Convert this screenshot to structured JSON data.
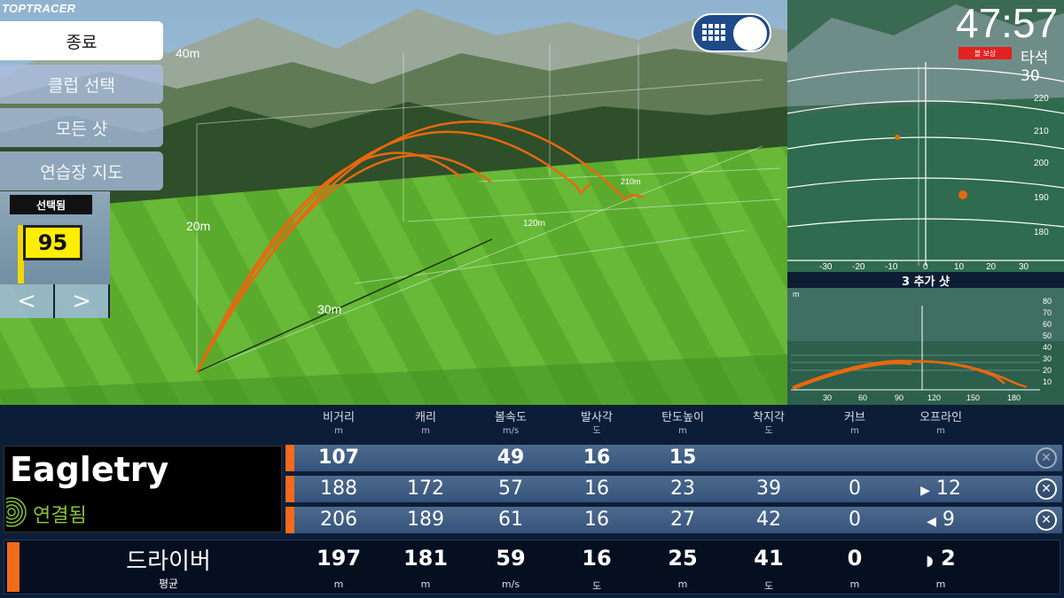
{
  "brand": "TOPTRACER",
  "menu": [
    {
      "label": "종료",
      "active": true
    },
    {
      "label": "클럽 선택",
      "active": false
    },
    {
      "label": "모든 샷",
      "active": false
    },
    {
      "label": "연습장 지도",
      "active": false
    }
  ],
  "target": {
    "label": "선택됨",
    "value": "95",
    "prev": "<",
    "next": ">"
  },
  "scene_labels": {
    "h40": "40m",
    "h20": "20m",
    "d30": "30m",
    "d120": "120m",
    "d210": "210m"
  },
  "timer": "47:57",
  "bonus_label": "볼 보상",
  "shots": {
    "label": "타석",
    "value": "30"
  },
  "top_view": {
    "y_ticks": [
      "220",
      "210",
      "200",
      "190",
      "180"
    ],
    "x_ticks": [
      "-30",
      "-20",
      "-10",
      "0",
      "10",
      "20",
      "30"
    ]
  },
  "add_shot": "3 추가 샷",
  "side_view": {
    "unit": "m",
    "y_ticks": [
      "80",
      "70",
      "60",
      "50",
      "40",
      "30",
      "20",
      "10"
    ],
    "x_ticks": [
      "30",
      "60",
      "90",
      "120",
      "150",
      "180"
    ]
  },
  "columns": [
    {
      "label": "비거리",
      "unit": "m"
    },
    {
      "label": "캐리",
      "unit": "m"
    },
    {
      "label": "볼속도",
      "unit": "m/s"
    },
    {
      "label": "발사각",
      "unit": "도"
    },
    {
      "label": "탄도높이",
      "unit": "m"
    },
    {
      "label": "착지각",
      "unit": "도"
    },
    {
      "label": "커브",
      "unit": "m"
    },
    {
      "label": "오프라인",
      "unit": "m"
    }
  ],
  "player": {
    "name": "Eagletry",
    "status": "연결됨"
  },
  "rows": [
    {
      "cells": [
        "107",
        "",
        "49",
        "16",
        "15",
        "",
        "",
        ""
      ],
      "offline_dir": "",
      "bold": true
    },
    {
      "cells": [
        "188",
        "172",
        "57",
        "16",
        "23",
        "39",
        "0",
        "12"
      ],
      "offline_dir": "▶",
      "bold": false
    },
    {
      "cells": [
        "206",
        "189",
        "61",
        "16",
        "27",
        "42",
        "0",
        "9"
      ],
      "offline_dir": "◀",
      "bold": false
    }
  ],
  "average": {
    "club": "드라이버",
    "label": "평균",
    "values": [
      "197",
      "181",
      "59",
      "16",
      "25",
      "41",
      "0",
      "2"
    ],
    "units": [
      "m",
      "m",
      "m/s",
      "도",
      "m",
      "도",
      "m",
      "m"
    ],
    "offline_dir": "◗"
  },
  "colors": {
    "trace": "#e8680f",
    "accent": "#f26a1b",
    "bonus": "#e42121",
    "flag": "#ffee00"
  }
}
